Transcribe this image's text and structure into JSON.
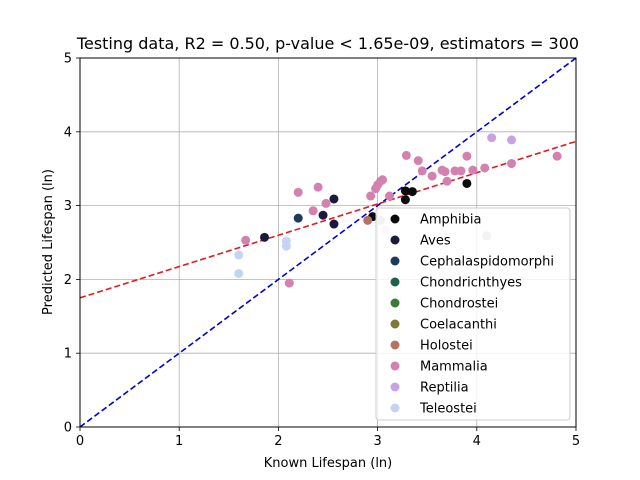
{
  "chart_data": {
    "type": "scatter",
    "title": "Testing data, R2 = 0.50, p-value < 1.65e-09, estimators = 300",
    "xlabel": "Known Lifespan (ln)",
    "ylabel": "Predicted Lifespan (ln)",
    "xlim": [
      0,
      5
    ],
    "ylim": [
      0,
      5
    ],
    "x_ticks": [
      "0",
      "1",
      "2",
      "3",
      "4",
      "5"
    ],
    "y_ticks": [
      "0",
      "1",
      "2",
      "3",
      "4",
      "5"
    ],
    "grid": true,
    "legend_position": "lower-right",
    "reference_lines": [
      {
        "style": "dashed",
        "color": "#0000dd",
        "slope": 1.0,
        "intercept": 0.0
      },
      {
        "style": "dashed",
        "color": "#e41a1c",
        "slope": 0.424,
        "intercept": 1.75
      }
    ],
    "series": [
      {
        "name": "Amphibia",
        "color": "#0b0b0b",
        "points": [
          [
            3.35,
            3.19
          ],
          [
            3.28,
            3.2
          ],
          [
            3.28,
            3.08
          ],
          [
            3.9,
            3.3
          ],
          [
            2.95,
            2.85
          ]
        ]
      },
      {
        "name": "Aves",
        "color": "#1c1a3c",
        "points": [
          [
            1.86,
            2.57
          ],
          [
            2.45,
            2.87
          ],
          [
            2.56,
            2.75
          ],
          [
            2.56,
            3.09
          ]
        ]
      },
      {
        "name": "Cephalaspidomorphi",
        "color": "#1f3b5c",
        "points": [
          [
            2.2,
            2.83
          ]
        ]
      },
      {
        "name": "Chondrichthyes",
        "color": "#1f5f50",
        "points": []
      },
      {
        "name": "Chondrostei",
        "color": "#3b7a37",
        "points": []
      },
      {
        "name": "Coelacanthi",
        "color": "#7d7a36",
        "points": []
      },
      {
        "name": "Holostei",
        "color": "#b57260",
        "points": [
          [
            2.9,
            2.8
          ]
        ]
      },
      {
        "name": "Mammalia",
        "color": "#d382b0",
        "points": [
          [
            1.67,
            2.53
          ],
          [
            2.11,
            1.95
          ],
          [
            2.2,
            3.18
          ],
          [
            2.35,
            2.93
          ],
          [
            2.4,
            3.25
          ],
          [
            2.48,
            3.03
          ],
          [
            2.93,
            3.13
          ],
          [
            2.98,
            3.23
          ],
          [
            3.0,
            3.28
          ],
          [
            3.03,
            3.33
          ],
          [
            3.05,
            3.35
          ],
          [
            3.12,
            3.13
          ],
          [
            3.29,
            3.68
          ],
          [
            3.41,
            3.61
          ],
          [
            3.45,
            3.47
          ],
          [
            3.55,
            3.4
          ],
          [
            3.65,
            3.48
          ],
          [
            3.68,
            3.46
          ],
          [
            3.7,
            3.33
          ],
          [
            3.78,
            3.47
          ],
          [
            3.84,
            3.47
          ],
          [
            3.9,
            3.67
          ],
          [
            3.96,
            3.48
          ],
          [
            4.08,
            3.51
          ],
          [
            4.35,
            3.57
          ],
          [
            4.81,
            3.67
          ]
        ]
      },
      {
        "name": "Reptilia",
        "color": "#c7a3e3",
        "points": [
          [
            4.15,
            3.92
          ],
          [
            4.35,
            3.89
          ]
        ]
      },
      {
        "name": "Teleostei",
        "color": "#c5d4f4",
        "points": [
          [
            1.6,
            2.33
          ],
          [
            1.6,
            2.08
          ],
          [
            2.08,
            2.45
          ],
          [
            2.08,
            2.52
          ]
        ]
      },
      {
        "name": "",
        "color": "#bdbdbd",
        "points": [
          [
            3.03,
            2.8
          ],
          [
            4.1,
            2.59
          ]
        ]
      },
      {
        "name": "",
        "color": "#f3d8e8",
        "points": [
          [
            3.08,
            2.67
          ]
        ]
      }
    ]
  }
}
